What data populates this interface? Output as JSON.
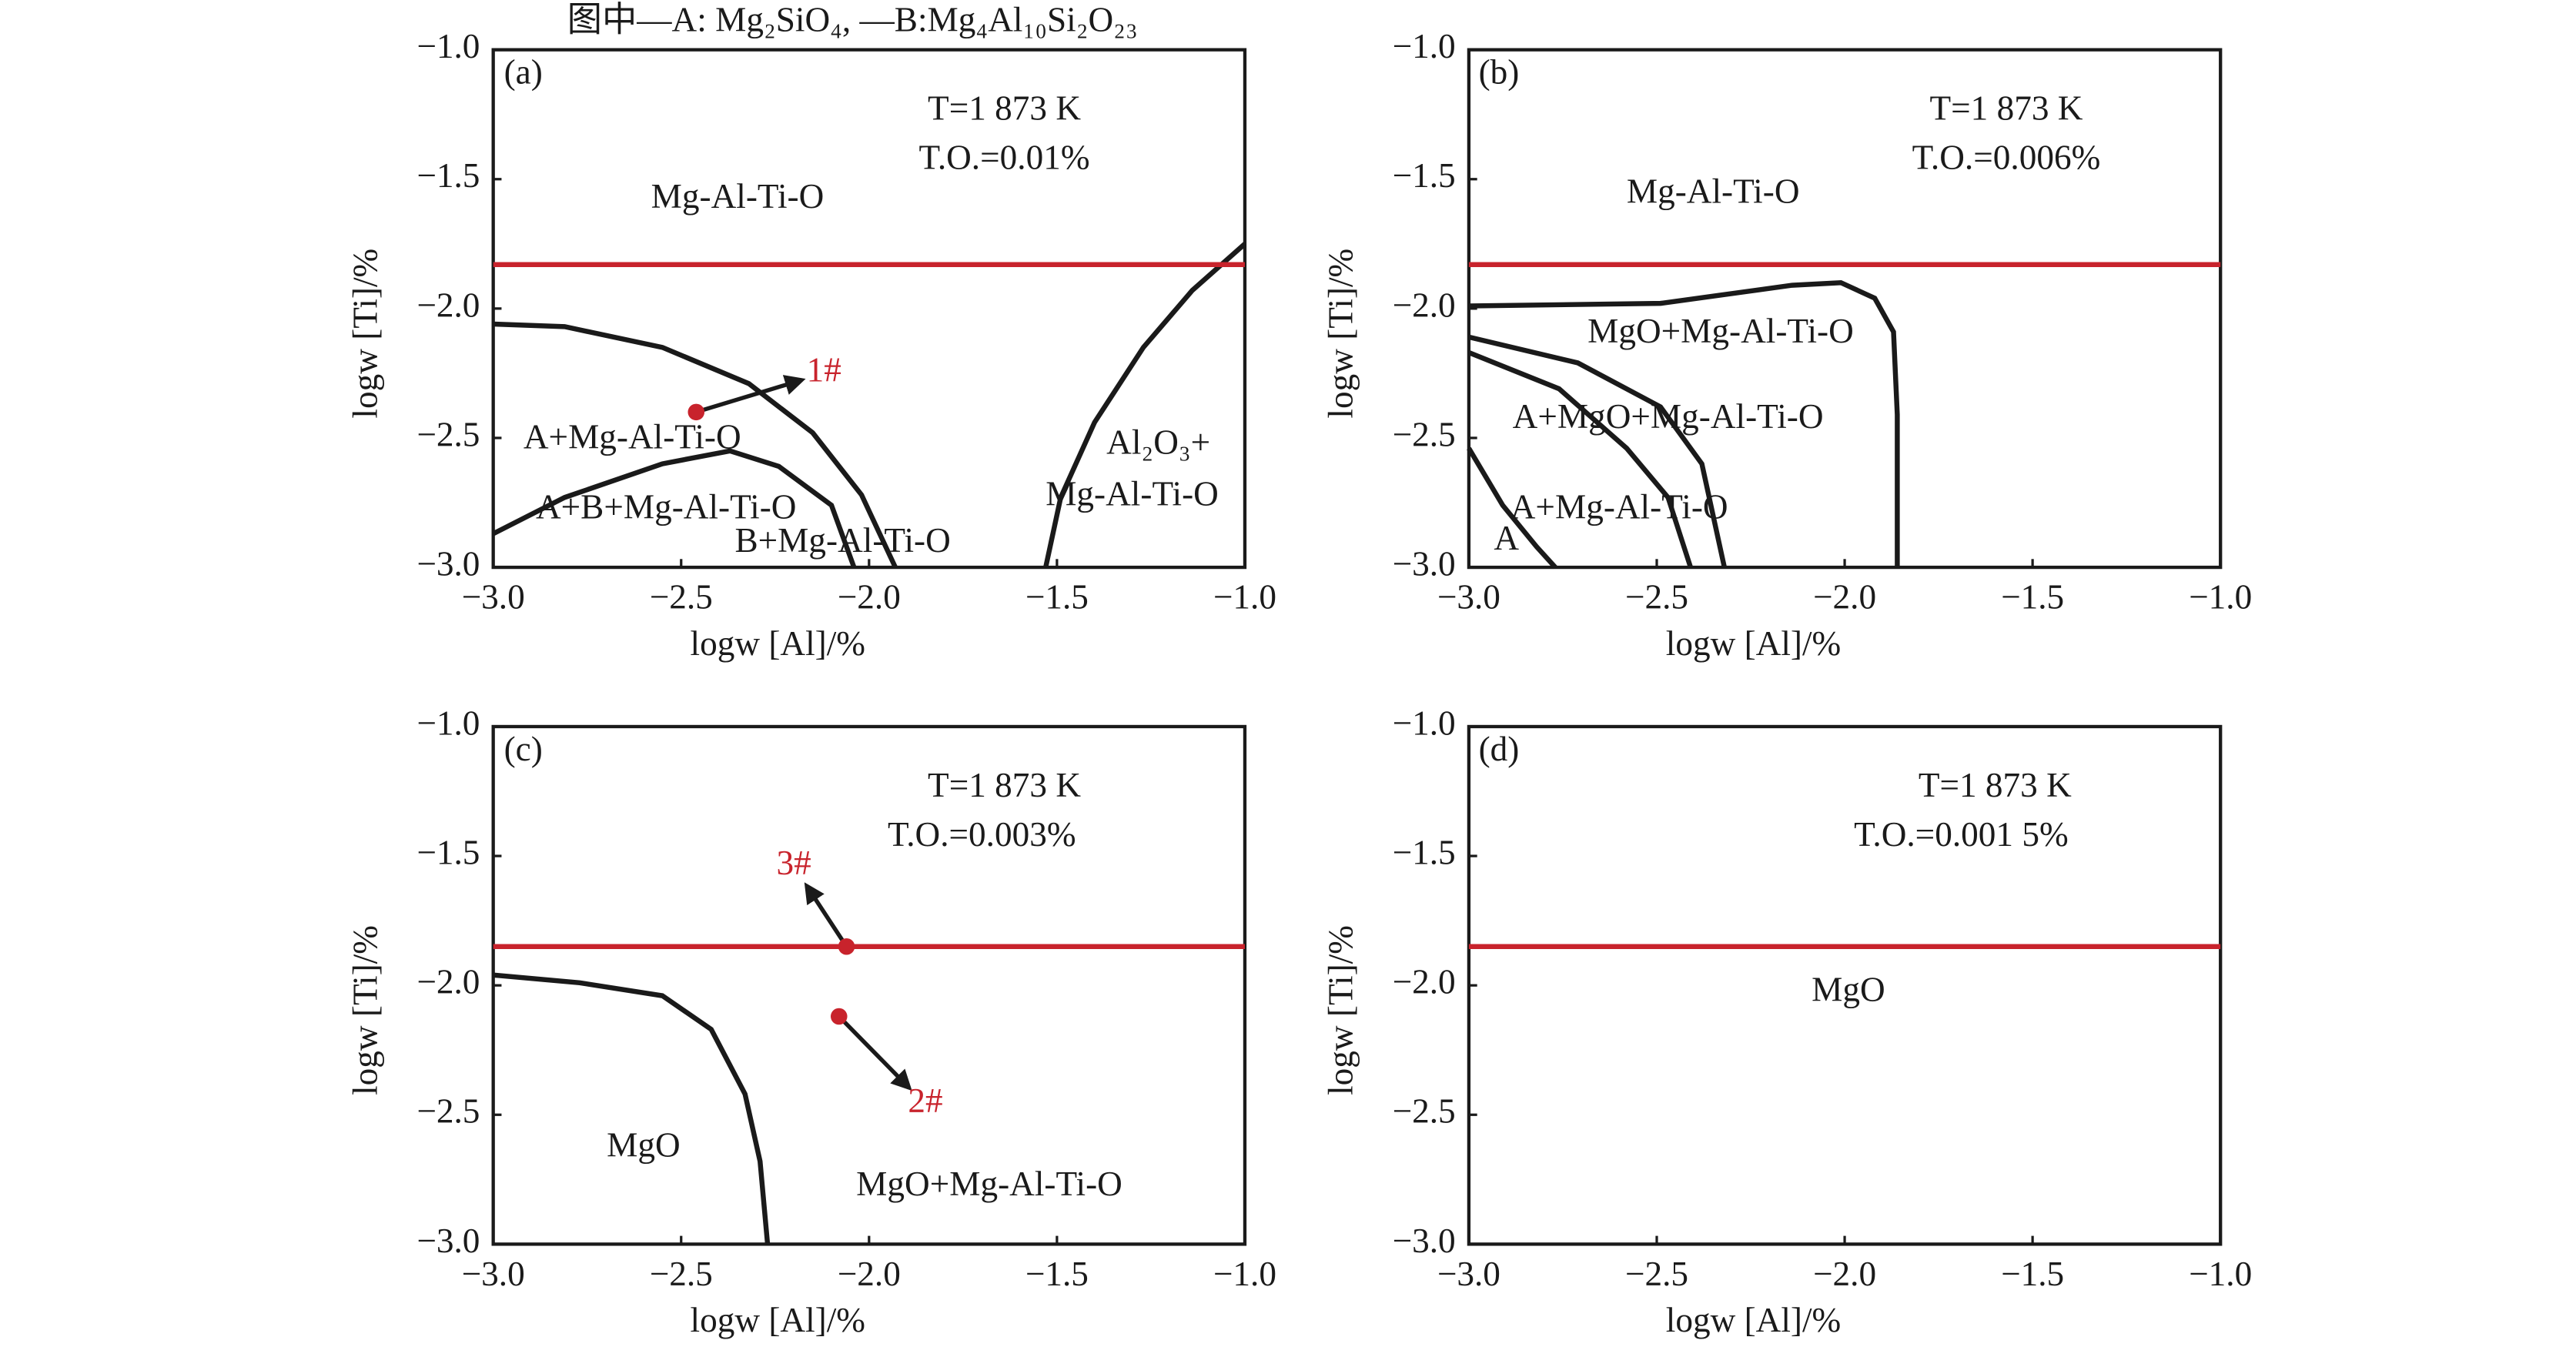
{
  "chart_data": [
    {
      "type": "line",
      "note": "图中—A: Mg₂SiO₄, —B:Mg₄Al₁₀Si₂O₂₃",
      "xlabel": "logw [Al]/%",
      "ylabel": "logw [Ti]/%",
      "xlim": [
        -3,
        -1
      ],
      "ylim": [
        -3,
        -1
      ],
      "xticks": [
        {
          "value": -3,
          "label": "−3.0"
        },
        {
          "value": -2.5,
          "label": "−2.5"
        },
        {
          "value": -2,
          "label": "−2.0"
        },
        {
          "value": -1.5,
          "label": "−1.5"
        },
        {
          "value": -1,
          "label": "−1.0"
        }
      ],
      "yticks": [
        {
          "value": -3,
          "label": "−3.0"
        },
        {
          "value": -2.5,
          "label": "−2.5"
        },
        {
          "value": -2,
          "label": "−2.0"
        },
        {
          "value": -1.5,
          "label": "−1.5"
        },
        {
          "value": -1,
          "label": "−1.0"
        }
      ],
      "lines": [
        {
          "color": "#1a1a1a",
          "x": [
            -3,
            -2.81,
            -2.55,
            -2.32,
            -2.15,
            -2.02,
            -1.93
          ],
          "values": [
            -2.06,
            -2.07,
            -2.15,
            -2.29,
            -2.48,
            -2.72,
            -3
          ]
        },
        {
          "color": "#1a1a1a",
          "x": [
            -3,
            -2.81,
            -2.55,
            -2.37,
            -2.24,
            -2.1,
            -2.04
          ],
          "values": [
            -2.87,
            -2.73,
            -2.6,
            -2.55,
            -2.61,
            -2.76,
            -3
          ]
        },
        {
          "color": "#1a1a1a",
          "x": [
            -1.53,
            -1.49,
            -1.4,
            -1.27,
            -1.14,
            -1
          ],
          "values": [
            -3,
            -2.73,
            -2.44,
            -2.15,
            -1.93,
            -1.75
          ]
        },
        {
          "color": "#c8232c",
          "x": [
            -3,
            -1
          ],
          "values": [
            -1.83,
            -1.83
          ]
        }
      ],
      "markers": [
        {
          "color": "#c8232c",
          "x": -2.46,
          "y": -2.4,
          "label": "1#",
          "label_x": -2.12,
          "label_y": -2.25
        }
      ],
      "annotations": [
        {
          "text": "(a)",
          "x": -2.92,
          "y": -1.1
        },
        {
          "text": "T=1 873 K",
          "x": -1.64,
          "y": -1.24
        },
        {
          "text": "T.O.=0.01%",
          "x": -1.64,
          "y": -1.43
        },
        {
          "text": "Mg-Al-Ti-O",
          "x": -2.35,
          "y": -1.58
        },
        {
          "text": "A+Mg-Al-Ti-O",
          "x": -2.63,
          "y": -2.51
        },
        {
          "text": "A+B+Mg-Al-Ti-O",
          "x": -2.54,
          "y": -2.78
        },
        {
          "text": "B+Mg-Al-Ti-O",
          "x": -2.07,
          "y": -2.91
        },
        {
          "text": "Al₂O₃+",
          "x": -1.23,
          "y": -2.53
        },
        {
          "text": "Mg-Al-Ti-O",
          "x": -1.3,
          "y": -2.73
        }
      ]
    },
    {
      "type": "line",
      "xlabel": "logw [Al]/%",
      "ylabel": "logw [Ti]/%",
      "xlim": [
        -3,
        -1
      ],
      "ylim": [
        -3,
        -1
      ],
      "xticks": [
        {
          "value": -3,
          "label": "−3.0"
        },
        {
          "value": -2.5,
          "label": "−2.5"
        },
        {
          "value": -2,
          "label": "−2.0"
        },
        {
          "value": -1.5,
          "label": "−1.5"
        },
        {
          "value": -1,
          "label": "−1.0"
        }
      ],
      "yticks": [
        {
          "value": -3,
          "label": "−3.0"
        },
        {
          "value": -2.5,
          "label": "−2.5"
        },
        {
          "value": -2,
          "label": "−2.0"
        },
        {
          "value": -1.5,
          "label": "−1.5"
        },
        {
          "value": -1,
          "label": "−1.0"
        }
      ],
      "lines": [
        {
          "color": "#1a1a1a",
          "x": [
            -3,
            -2.49,
            -2.14,
            -2.01,
            -1.92,
            -1.87,
            -1.86,
            -1.86
          ],
          "values": [
            -1.99,
            -1.98,
            -1.91,
            -1.9,
            -1.96,
            -2.09,
            -2.41,
            -3
          ]
        },
        {
          "color": "#1a1a1a",
          "x": [
            -3,
            -2.71,
            -2.49,
            -2.38,
            -2.32
          ],
          "values": [
            -2.11,
            -2.21,
            -2.38,
            -2.6,
            -3
          ]
        },
        {
          "color": "#1a1a1a",
          "x": [
            -3,
            -2.76,
            -2.58,
            -2.47,
            -2.41
          ],
          "values": [
            -2.17,
            -2.31,
            -2.54,
            -2.73,
            -3
          ]
        },
        {
          "color": "#1a1a1a",
          "x": [
            -3,
            -2.91,
            -2.82,
            -2.77
          ],
          "values": [
            -2.54,
            -2.76,
            -2.92,
            -3
          ]
        },
        {
          "color": "#c8232c",
          "x": [
            -3,
            -1
          ],
          "values": [
            -1.83,
            -1.83
          ]
        }
      ],
      "annotations": [
        {
          "text": "(b)",
          "x": -2.92,
          "y": -1.1
        },
        {
          "text": "T=1 873 K",
          "x": -1.57,
          "y": -1.24
        },
        {
          "text": "T.O.=0.006%",
          "x": -1.57,
          "y": -1.43
        },
        {
          "text": "Mg-Al-Ti-O",
          "x": -2.35,
          "y": -1.56
        },
        {
          "text": "MgO+Mg-Al-Ti-O",
          "x": -2.33,
          "y": -2.1
        },
        {
          "text": "A+MgO+Mg-Al-Ti-O",
          "x": -2.47,
          "y": -2.43
        },
        {
          "text": "A+Mg-Al-Ti-O",
          "x": -2.6,
          "y": -2.78
        },
        {
          "text": "A",
          "x": -2.9,
          "y": -2.9
        }
      ]
    },
    {
      "type": "line",
      "xlabel": "logw [Al]/%",
      "ylabel": "logw [Ti]/%",
      "xlim": [
        -3,
        -1
      ],
      "ylim": [
        -3,
        -1
      ],
      "xticks": [
        {
          "value": -3,
          "label": "−3.0"
        },
        {
          "value": -2.5,
          "label": "−2.5"
        },
        {
          "value": -2,
          "label": "−2.0"
        },
        {
          "value": -1.5,
          "label": "−1.5"
        },
        {
          "value": -1,
          "label": "−1.0"
        }
      ],
      "yticks": [
        {
          "value": -3,
          "label": "−3.0"
        },
        {
          "value": -2.5,
          "label": "−2.5"
        },
        {
          "value": -2,
          "label": "−2.0"
        },
        {
          "value": -1.5,
          "label": "−1.5"
        },
        {
          "value": -1,
          "label": "−1.0"
        }
      ],
      "lines": [
        {
          "color": "#1a1a1a",
          "x": [
            -3,
            -2.77,
            -2.55,
            -2.42,
            -2.33,
            -2.29,
            -2.27
          ],
          "values": [
            -1.96,
            -1.99,
            -2.04,
            -2.17,
            -2.42,
            -2.68,
            -3
          ]
        },
        {
          "color": "#c8232c",
          "x": [
            -3,
            -1
          ],
          "values": [
            -1.85,
            -1.85
          ]
        }
      ],
      "markers": [
        {
          "color": "#c8232c",
          "x": -2.06,
          "y": -1.85,
          "label": "3#",
          "label_x": -2.2,
          "label_y": -1.54
        },
        {
          "color": "#c8232c",
          "x": -2.08,
          "y": -2.12,
          "label": "2#",
          "label_x": -1.85,
          "label_y": -2.46
        }
      ],
      "annotations": [
        {
          "text": "(c)",
          "x": -2.92,
          "y": -1.1
        },
        {
          "text": "T=1 873 K",
          "x": -1.64,
          "y": -1.24
        },
        {
          "text": "T.O.=0.003%",
          "x": -1.7,
          "y": -1.43
        },
        {
          "text": "MgO",
          "x": -2.6,
          "y": -2.63
        },
        {
          "text": "MgO+Mg-Al-Ti-O",
          "x": -1.68,
          "y": -2.78
        }
      ]
    },
    {
      "type": "line",
      "xlabel": "logw [Al]/%",
      "ylabel": "logw [Ti]/%",
      "xlim": [
        -3,
        -1
      ],
      "ylim": [
        -3,
        -1
      ],
      "xticks": [
        {
          "value": -3,
          "label": "−3.0"
        },
        {
          "value": -2.5,
          "label": "−2.5"
        },
        {
          "value": -2,
          "label": "−2.0"
        },
        {
          "value": -1.5,
          "label": "−1.5"
        },
        {
          "value": -1,
          "label": "−1.0"
        }
      ],
      "yticks": [
        {
          "value": -3,
          "label": "−3.0"
        },
        {
          "value": -2.5,
          "label": "−2.5"
        },
        {
          "value": -2,
          "label": "−2.0"
        },
        {
          "value": -1.5,
          "label": "−1.5"
        },
        {
          "value": -1,
          "label": "−1.0"
        }
      ],
      "lines": [
        {
          "color": "#c8232c",
          "x": [
            -3,
            -1
          ],
          "values": [
            -1.85,
            -1.85
          ]
        }
      ],
      "annotations": [
        {
          "text": "(d)",
          "x": -2.92,
          "y": -1.1
        },
        {
          "text": "T=1 873 K",
          "x": -1.6,
          "y": -1.24
        },
        {
          "text": "T.O.=0.001 5%",
          "x": -1.69,
          "y": -1.43
        },
        {
          "text": "MgO",
          "x": -1.99,
          "y": -2.03
        }
      ]
    }
  ]
}
